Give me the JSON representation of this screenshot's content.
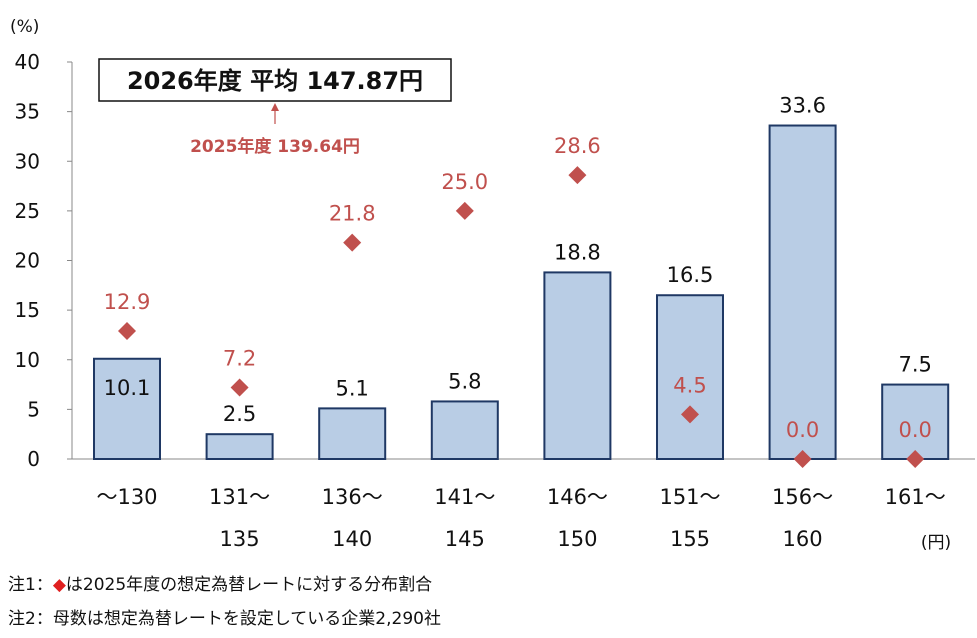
{
  "chart_data": {
    "type": "bar",
    "y_unit_label": "(%)",
    "x_unit_label": "(円)",
    "ylim": [
      0,
      40
    ],
    "yticks": [
      0,
      5,
      10,
      15,
      20,
      25,
      30,
      35,
      40
    ],
    "categories": [
      [
        "～130"
      ],
      [
        "131～",
        "135"
      ],
      [
        "136～",
        "140"
      ],
      [
        "141～",
        "145"
      ],
      [
        "146～",
        "150"
      ],
      [
        "151～",
        "155"
      ],
      [
        "156～",
        "160"
      ],
      [
        "161～"
      ]
    ],
    "series": [
      {
        "type": "bar",
        "values": [
          10.1,
          2.5,
          5.1,
          5.8,
          18.8,
          16.5,
          33.6,
          7.5
        ],
        "labels": [
          "10.1",
          "2.5",
          "5.1",
          "5.8",
          "18.8",
          "16.5",
          "33.6",
          "7.5"
        ],
        "color": "#b9cde5",
        "border_color": "#1f3864"
      },
      {
        "type": "scatter",
        "marker": "diamond",
        "values": [
          12.9,
          7.2,
          21.8,
          25.0,
          28.6,
          4.5,
          0.0,
          0.0
        ],
        "labels": [
          "12.9",
          "7.2",
          "21.8",
          "25.0",
          "28.6",
          "4.5",
          "0.0",
          "0.0"
        ],
        "color": "#c0504d"
      }
    ],
    "annotation_box": "2026年度 平均 147.87円",
    "annotation_sub": "2025年度 139.64円",
    "annotation_sub_color": "#c0504d",
    "grid": false
  },
  "notes": {
    "note1_prefix": "注1：",
    "note1_marker": "◆",
    "note1_text": "は2025年度の想定為替レートに対する分布割合",
    "note2": "注2：母数は想定為替レートを設定している企業2,290社"
  }
}
